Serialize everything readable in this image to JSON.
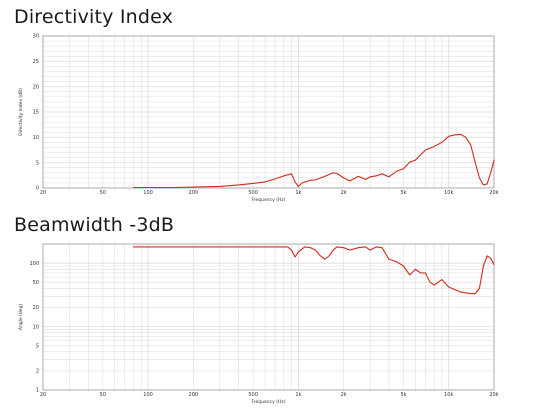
{
  "colors": {
    "curve": "#d42a1e",
    "grid": "#d6d6d6",
    "frame": "#9a9a9a"
  },
  "chart_data": [
    {
      "type": "line",
      "title": "Directivity Index",
      "xlabel": "Frequency (Hz)",
      "ylabel": "Directivity Index (dB)",
      "xscale": "log",
      "xlim": [
        20,
        20000
      ],
      "ylim": [
        0,
        30
      ],
      "grid": true,
      "x_ticks": [
        20,
        50,
        100,
        200,
        500,
        1000,
        2000,
        5000,
        10000,
        20000
      ],
      "x_tick_labels": [
        "20",
        "50",
        "100",
        "200",
        "500",
        "1k",
        "2k",
        "5k",
        "10k",
        "20k"
      ],
      "y_ticks": [
        0,
        5,
        10,
        15,
        20,
        25,
        30
      ],
      "y_tick_labels": [
        "0",
        "5",
        "10",
        "15",
        "20",
        "25",
        "30"
      ],
      "series": [
        {
          "color": "#d42a1e",
          "x": [
            80,
            150,
            200,
            300,
            400,
            500,
            600,
            700,
            800,
            900,
            950,
            1000,
            1050,
            1100,
            1200,
            1300,
            1500,
            1700,
            1800,
            2000,
            2200,
            2500,
            2800,
            3000,
            3300,
            3600,
            4000,
            4500,
            5000,
            5500,
            6000,
            7000,
            8000,
            9000,
            10000,
            11000,
            12000,
            13000,
            14000,
            15000,
            16000,
            17000,
            18000,
            19000,
            20000
          ],
          "y": [
            0.1,
            0.1,
            0.2,
            0.3,
            0.6,
            0.9,
            1.2,
            1.8,
            2.4,
            2.8,
            1.2,
            0.3,
            0.9,
            1.2,
            1.5,
            1.6,
            2.3,
            3.0,
            2.9,
            2.0,
            1.4,
            2.3,
            1.7,
            2.2,
            2.4,
            2.8,
            2.2,
            3.3,
            3.8,
            5.1,
            5.5,
            7.5,
            8.2,
            9.0,
            10.2,
            10.5,
            10.6,
            10.0,
            8.5,
            5.0,
            2.0,
            0.6,
            0.8,
            3.0,
            5.5
          ]
        }
      ]
    },
    {
      "type": "line",
      "title": "Beamwidth -3dB",
      "xlabel": "Frequency (Hz)",
      "ylabel": "Angle (deg)",
      "xscale": "log",
      "yscale": "log",
      "xlim": [
        20,
        20000
      ],
      "ylim": [
        1,
        200
      ],
      "grid": true,
      "x_ticks": [
        20,
        50,
        100,
        200,
        500,
        1000,
        2000,
        5000,
        10000,
        20000
      ],
      "x_tick_labels": [
        "20",
        "50",
        "100",
        "200",
        "500",
        "1k",
        "2k",
        "5k",
        "10k",
        "20k"
      ],
      "y_ticks": [
        1,
        2,
        5,
        10,
        20,
        50,
        100
      ],
      "y_tick_labels": [
        "1",
        "2",
        "5",
        "10",
        "20",
        "50",
        "100"
      ],
      "series": [
        {
          "color": "#d42a1e",
          "x": [
            80,
            150,
            200,
            300,
            500,
            700,
            850,
            900,
            950,
            1000,
            1100,
            1200,
            1300,
            1400,
            1500,
            1600,
            1700,
            1800,
            2000,
            2200,
            2500,
            2800,
            3000,
            3300,
            3600,
            4000,
            4500,
            5000,
            5500,
            6000,
            6500,
            7000,
            7500,
            8000,
            9000,
            10000,
            11000,
            12000,
            13000,
            14000,
            15000,
            16000,
            17000,
            18000,
            19000,
            20000
          ],
          "y": [
            180,
            180,
            180,
            180,
            180,
            180,
            180,
            160,
            125,
            150,
            180,
            175,
            160,
            130,
            115,
            130,
            160,
            180,
            175,
            160,
            175,
            180,
            160,
            180,
            175,
            115,
            105,
            90,
            65,
            80,
            70,
            70,
            50,
            45,
            55,
            42,
            38,
            35,
            34,
            33,
            33,
            40,
            90,
            130,
            120,
            95
          ]
        }
      ]
    }
  ]
}
